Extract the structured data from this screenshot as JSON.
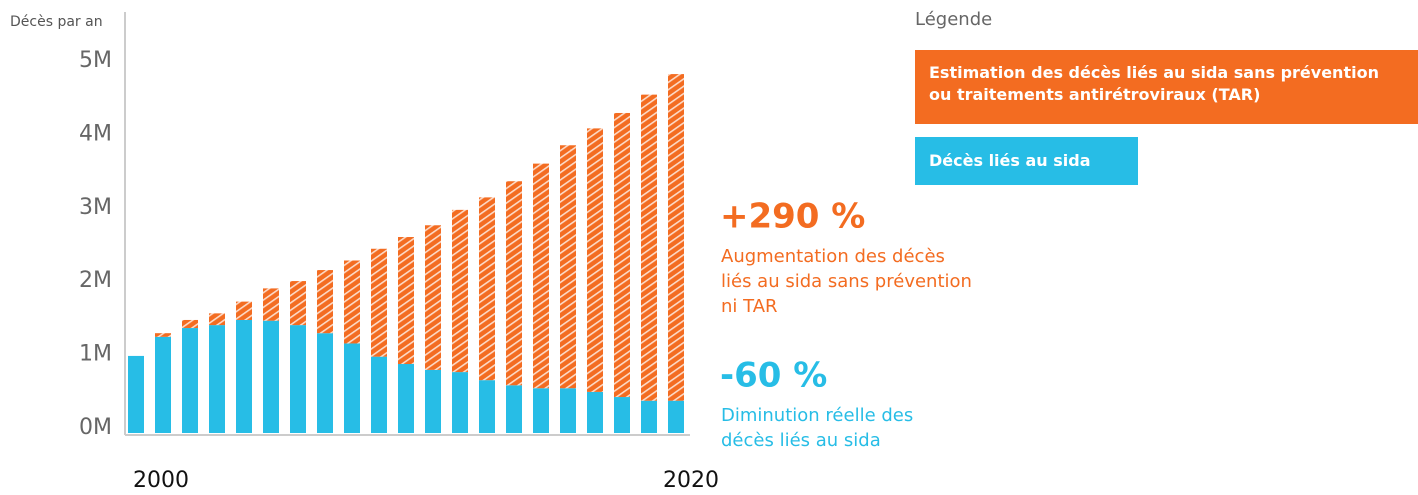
{
  "chart_data": {
    "type": "stacked_bar",
    "y_label": "Décès par an",
    "legend_title": "Légende",
    "categories": [
      "2000",
      null,
      null,
      null,
      null,
      null,
      null,
      null,
      null,
      null,
      null,
      null,
      null,
      null,
      null,
      null,
      null,
      null,
      null,
      null,
      "2020"
    ],
    "series": [
      {
        "name": "Décès liés au sida",
        "color": "#27bde6",
        "values": [
          1.05,
          1.31,
          1.43,
          1.47,
          1.54,
          1.53,
          1.47,
          1.36,
          1.22,
          1.04,
          0.94,
          0.86,
          0.83,
          0.72,
          0.65,
          0.61,
          0.61,
          0.56,
          0.49,
          0.44,
          0.44
        ]
      },
      {
        "name": "Estimation des décès liés au sida sans prévention ou traitements antirétroviraux (TAR)",
        "color": "#f36c21",
        "hatch": true,
        "values": [
          0,
          0.05,
          0.11,
          0.16,
          0.25,
          0.44,
          0.6,
          0.86,
          1.13,
          1.47,
          1.73,
          1.97,
          2.21,
          2.49,
          2.78,
          3.06,
          3.31,
          3.59,
          3.87,
          4.17,
          4.45
        ]
      }
    ],
    "ylim": [
      0,
      5
    ],
    "yticks": [
      {
        "value": 0,
        "label": "0M"
      },
      {
        "value": 1,
        "label": "1M"
      },
      {
        "value": 2,
        "label": "2M"
      },
      {
        "value": 3,
        "label": "3M"
      },
      {
        "value": 4,
        "label": "4M"
      },
      {
        "value": 5,
        "label": "5M"
      }
    ],
    "annotations": [
      {
        "title": "+290 %",
        "lines": [
          "Augmentation des décès",
          "liés au sida sans prévention",
          "ni TAR"
        ],
        "color": "#f36c21"
      },
      {
        "title": "-60 %",
        "lines": [
          "Diminution réelle des",
          "décès liés au sida"
        ],
        "color": "#27bde6"
      }
    ]
  }
}
